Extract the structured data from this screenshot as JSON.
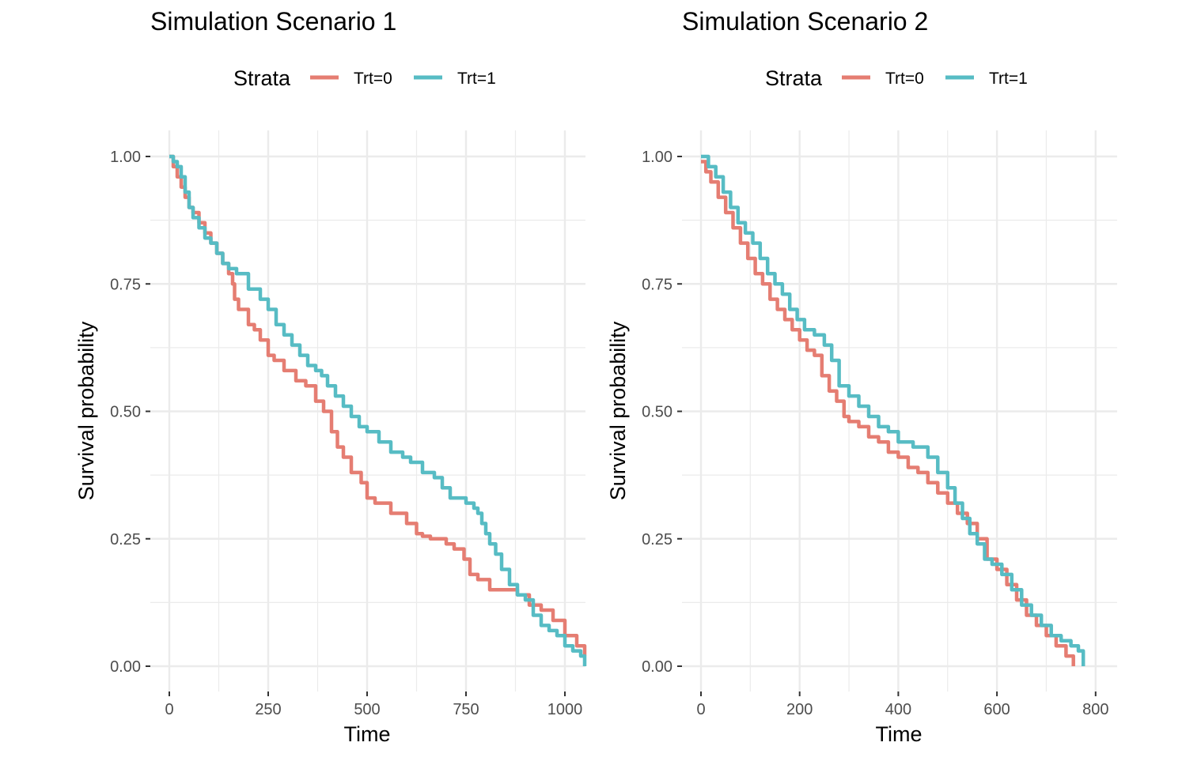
{
  "legend": {
    "title": "Strata",
    "entries": [
      "Trt=0",
      "Trt=1"
    ]
  },
  "colors": {
    "trt0": "#E57D72",
    "trt1": "#57BCC4",
    "grid": "#EBEBEB"
  },
  "chart_data": [
    {
      "type": "line",
      "title": "Simulation Scenario 1",
      "xlabel": "Time",
      "ylabel": "Survival probability",
      "xlim": [
        0,
        1050
      ],
      "ylim": [
        0,
        1
      ],
      "xticks": [
        0,
        250,
        500,
        750,
        1000
      ],
      "xtick_labels": [
        "0",
        "250",
        "500",
        "750",
        "1000"
      ],
      "yticks": [
        0,
        0.25,
        0.5,
        0.75,
        1.0
      ],
      "ytick_labels": [
        "0.00",
        "0.25",
        "0.50",
        "0.75",
        "1.00"
      ],
      "series": [
        {
          "name": "Trt=0",
          "x": [
            0,
            10,
            20,
            30,
            40,
            50,
            60,
            75,
            90,
            105,
            120,
            135,
            150,
            160,
            165,
            175,
            200,
            215,
            230,
            250,
            265,
            290,
            320,
            345,
            370,
            390,
            410,
            425,
            440,
            460,
            485,
            500,
            520,
            560,
            600,
            625,
            640,
            660,
            700,
            720,
            745,
            760,
            780,
            810,
            850,
            880,
            910,
            940,
            970,
            1000,
            1030,
            1050
          ],
          "values": [
            1.0,
            0.98,
            0.96,
            0.94,
            0.92,
            0.9,
            0.89,
            0.87,
            0.85,
            0.83,
            0.81,
            0.79,
            0.77,
            0.75,
            0.72,
            0.7,
            0.67,
            0.66,
            0.64,
            0.61,
            0.6,
            0.58,
            0.56,
            0.55,
            0.52,
            0.5,
            0.46,
            0.43,
            0.41,
            0.38,
            0.36,
            0.33,
            0.32,
            0.3,
            0.28,
            0.26,
            0.255,
            0.25,
            0.24,
            0.23,
            0.21,
            0.18,
            0.17,
            0.15,
            0.15,
            0.14,
            0.12,
            0.11,
            0.09,
            0.06,
            0.04,
            0.02
          ]
        },
        {
          "name": "Trt=1",
          "x": [
            0,
            10,
            20,
            30,
            40,
            50,
            60,
            75,
            90,
            105,
            120,
            135,
            150,
            170,
            200,
            230,
            250,
            270,
            290,
            310,
            330,
            350,
            370,
            385,
            400,
            420,
            440,
            460,
            480,
            500,
            530,
            560,
            590,
            610,
            640,
            670,
            690,
            710,
            750,
            770,
            780,
            790,
            800,
            810,
            825,
            840,
            860,
            880,
            900,
            920,
            940,
            960,
            980,
            1000,
            1020,
            1040,
            1050
          ],
          "values": [
            1.0,
            0.99,
            0.98,
            0.96,
            0.93,
            0.9,
            0.88,
            0.86,
            0.84,
            0.83,
            0.81,
            0.79,
            0.78,
            0.77,
            0.74,
            0.72,
            0.7,
            0.67,
            0.65,
            0.63,
            0.61,
            0.59,
            0.58,
            0.57,
            0.55,
            0.53,
            0.51,
            0.49,
            0.47,
            0.46,
            0.44,
            0.42,
            0.41,
            0.4,
            0.38,
            0.37,
            0.35,
            0.33,
            0.32,
            0.31,
            0.3,
            0.28,
            0.26,
            0.24,
            0.22,
            0.19,
            0.16,
            0.14,
            0.13,
            0.1,
            0.08,
            0.07,
            0.06,
            0.04,
            0.03,
            0.02,
            0.0
          ]
        }
      ]
    },
    {
      "type": "line",
      "title": "Simulation Scenario 2",
      "xlabel": "Time",
      "ylabel": "Survival probability",
      "xlim": [
        0,
        840
      ],
      "ylim": [
        0,
        1
      ],
      "xticks": [
        0,
        200,
        400,
        600,
        800
      ],
      "xtick_labels": [
        "0",
        "200",
        "400",
        "600",
        "800"
      ],
      "yticks": [
        0,
        0.25,
        0.5,
        0.75,
        1.0
      ],
      "ytick_labels": [
        "0.00",
        "0.25",
        "0.50",
        "0.75",
        "1.00"
      ],
      "series": [
        {
          "name": "Trt=0",
          "x": [
            0,
            10,
            20,
            35,
            50,
            65,
            80,
            95,
            110,
            125,
            140,
            155,
            170,
            185,
            200,
            215,
            230,
            245,
            260,
            275,
            290,
            300,
            320,
            340,
            360,
            380,
            400,
            420,
            440,
            460,
            480,
            500,
            520,
            540,
            560,
            580,
            600,
            620,
            640,
            660,
            680,
            700,
            720,
            740,
            755
          ],
          "values": [
            0.99,
            0.97,
            0.95,
            0.92,
            0.89,
            0.86,
            0.83,
            0.8,
            0.77,
            0.75,
            0.72,
            0.7,
            0.68,
            0.66,
            0.64,
            0.62,
            0.61,
            0.57,
            0.54,
            0.52,
            0.49,
            0.48,
            0.47,
            0.45,
            0.44,
            0.42,
            0.41,
            0.39,
            0.38,
            0.36,
            0.34,
            0.32,
            0.3,
            0.28,
            0.25,
            0.21,
            0.19,
            0.16,
            0.13,
            0.1,
            0.08,
            0.06,
            0.04,
            0.02,
            0.0
          ]
        },
        {
          "name": "Trt=1",
          "x": [
            0,
            15,
            30,
            45,
            60,
            75,
            90,
            105,
            120,
            135,
            150,
            165,
            180,
            195,
            210,
            230,
            250,
            265,
            280,
            300,
            320,
            340,
            360,
            380,
            400,
            430,
            460,
            480,
            500,
            515,
            530,
            545,
            560,
            575,
            590,
            610,
            630,
            650,
            670,
            690,
            710,
            730,
            750,
            765,
            775
          ],
          "values": [
            1.0,
            0.98,
            0.96,
            0.93,
            0.9,
            0.87,
            0.85,
            0.83,
            0.8,
            0.77,
            0.75,
            0.73,
            0.7,
            0.68,
            0.66,
            0.65,
            0.63,
            0.6,
            0.55,
            0.53,
            0.51,
            0.49,
            0.47,
            0.46,
            0.44,
            0.43,
            0.41,
            0.38,
            0.35,
            0.32,
            0.29,
            0.26,
            0.24,
            0.21,
            0.2,
            0.18,
            0.15,
            0.12,
            0.1,
            0.08,
            0.06,
            0.05,
            0.04,
            0.03,
            0.0
          ]
        }
      ]
    }
  ]
}
